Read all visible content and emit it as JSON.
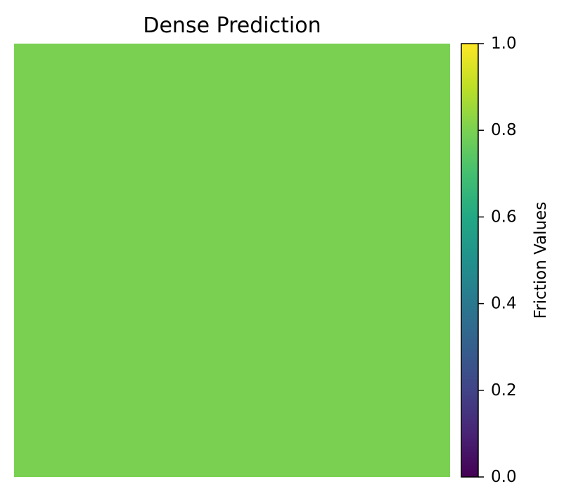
{
  "chart_data": {
    "type": "heatmap",
    "title": "Dense Prediction",
    "grid_values": [
      [
        0.78
      ]
    ],
    "fill_color": "#7AD151",
    "axes_visible": false,
    "colorbar": {
      "label": "Friction Values",
      "colormap": "viridis",
      "range": [
        0.0,
        1.0
      ],
      "ticks": [
        0.0,
        0.2,
        0.4,
        0.6,
        0.8,
        1.0
      ],
      "tick_labels": [
        "0.0",
        "0.2",
        "0.4",
        "0.6",
        "0.8",
        "1.0"
      ]
    }
  }
}
